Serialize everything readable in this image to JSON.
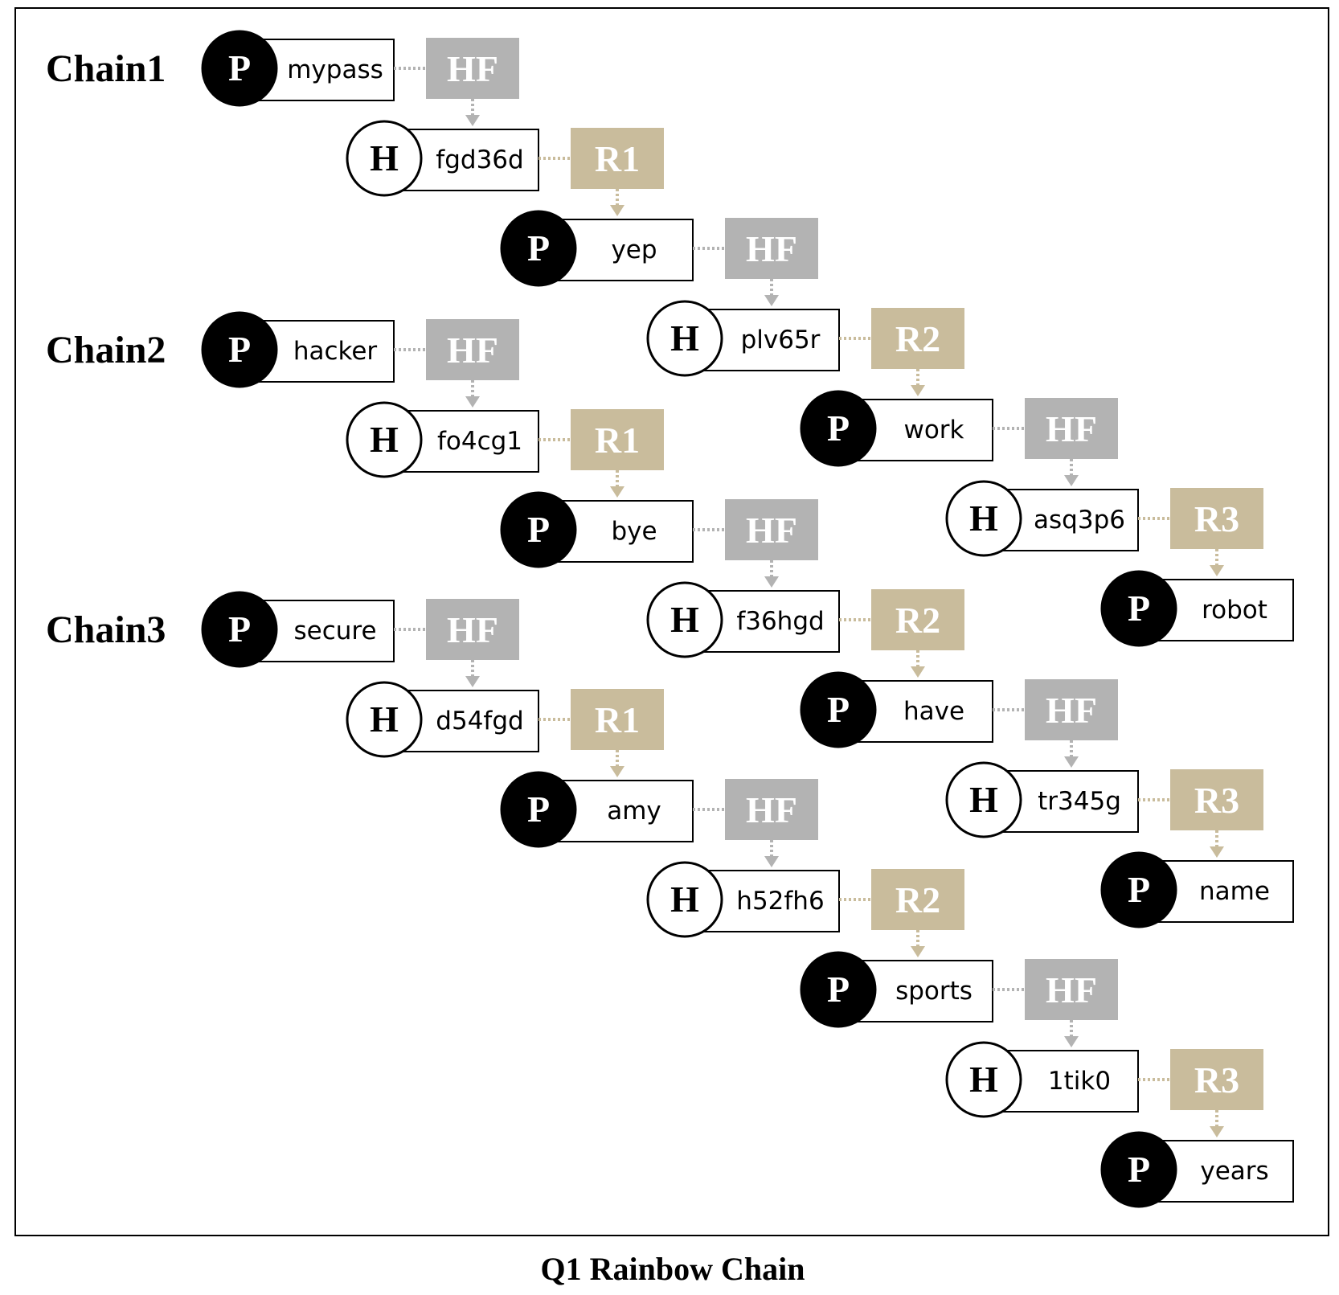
{
  "caption": "Q1 Rainbow Chain",
  "labels": {
    "plain": "P",
    "hash": "H",
    "hash_fn": "HF"
  },
  "colors": {
    "plain_node": "#000000",
    "hash_node": "#ffffff",
    "hf_box": "#b3b3b3",
    "reduce_box": "#c9bc9c",
    "border": "#000000"
  },
  "chains": [
    {
      "label": "Chain1",
      "steps": [
        {
          "type": "plain",
          "value": "mypass"
        },
        {
          "type": "hash",
          "value": "fgd36d",
          "reduce": "R1"
        },
        {
          "type": "plain",
          "value": "yep"
        },
        {
          "type": "hash",
          "value": "plv65r",
          "reduce": "R2"
        },
        {
          "type": "plain",
          "value": "work"
        },
        {
          "type": "hash",
          "value": "asq3p6",
          "reduce": "R3"
        },
        {
          "type": "plain",
          "value": "robot"
        }
      ]
    },
    {
      "label": "Chain2",
      "steps": [
        {
          "type": "plain",
          "value": "hacker"
        },
        {
          "type": "hash",
          "value": "fo4cg1",
          "reduce": "R1"
        },
        {
          "type": "plain",
          "value": "bye"
        },
        {
          "type": "hash",
          "value": "f36hgd",
          "reduce": "R2"
        },
        {
          "type": "plain",
          "value": "have"
        },
        {
          "type": "hash",
          "value": "tr345g",
          "reduce": "R3"
        },
        {
          "type": "plain",
          "value": "name"
        }
      ]
    },
    {
      "label": "Chain3",
      "steps": [
        {
          "type": "plain",
          "value": "secure"
        },
        {
          "type": "hash",
          "value": "d54fgd",
          "reduce": "R1"
        },
        {
          "type": "plain",
          "value": "amy"
        },
        {
          "type": "hash",
          "value": "h52fh6",
          "reduce": "R2"
        },
        {
          "type": "plain",
          "value": "sports"
        },
        {
          "type": "hash",
          "value": "1tik0",
          "reduce": "R3"
        },
        {
          "type": "plain",
          "value": "years"
        }
      ]
    }
  ]
}
